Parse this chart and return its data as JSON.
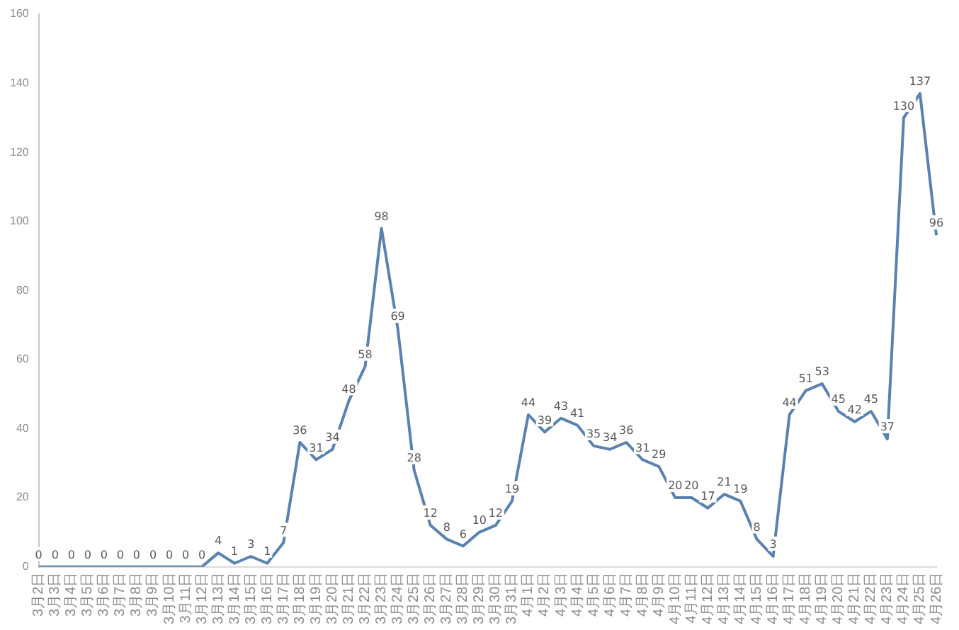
{
  "chart_data": {
    "type": "line",
    "categories": [
      "3月2日",
      "3月3日",
      "3月4日",
      "3月5日",
      "3月6日",
      "3月7日",
      "3月8日",
      "3月9日",
      "3月10日",
      "3月11日",
      "3月12日",
      "3月13日",
      "3月14日",
      "3月15日",
      "3月16日",
      "3月17日",
      "3月18日",
      "3月19日",
      "3月20日",
      "3月21日",
      "3月22日",
      "3月23日",
      "3月24日",
      "3月25日",
      "3月26日",
      "3月27日",
      "3月28日",
      "3月29日",
      "3月30日",
      "3月31日",
      "4月1日",
      "4月2日",
      "4月3日",
      "4月4日",
      "4月5日",
      "4月6日",
      "4月7日",
      "4月8日",
      "4月9日",
      "4月10日",
      "4月11日",
      "4月12日",
      "4月13日",
      "4月14日",
      "4月15日",
      "4月16日",
      "4月17日",
      "4月18日",
      "4月19日",
      "4月20日",
      "4月21日",
      "4月22日",
      "4月23日",
      "4月24日",
      "4月25日",
      "4月26日"
    ],
    "series": [
      {
        "color": "#5a82b0",
        "values": [
          0,
          0,
          0,
          0,
          0,
          0,
          0,
          0,
          0,
          0,
          0,
          4,
          1,
          3,
          1,
          7,
          36,
          31,
          34,
          48,
          58,
          98,
          69,
          28,
          12,
          8,
          6,
          10,
          12,
          19,
          44,
          39,
          43,
          41,
          35,
          34,
          36,
          31,
          29,
          20,
          20,
          17,
          21,
          19,
          8,
          3,
          44,
          51,
          53,
          45,
          42,
          45,
          37,
          130,
          137,
          96
        ]
      }
    ],
    "ylim": [
      0,
      160
    ],
    "yticks": [
      0,
      20,
      40,
      60,
      80,
      100,
      120,
      140,
      160
    ],
    "grid": false,
    "legend": false,
    "marker": "none",
    "line_style": "solid",
    "data_labels": true
  }
}
